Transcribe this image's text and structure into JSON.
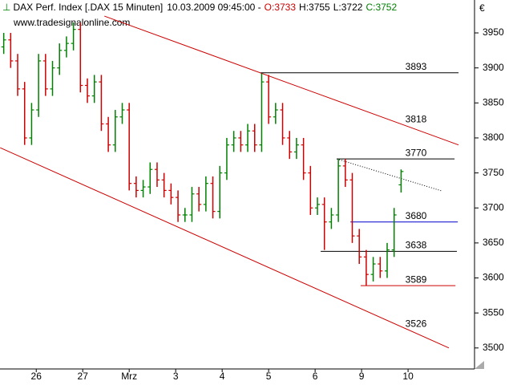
{
  "chart_data": {
    "type": "ohlc",
    "title": "DAX Perf. Index [.DAX  15 Minuten]",
    "timestamp": "10.03.2009 09:45:00 -",
    "quote": [
      {
        "text": "O:3733",
        "color": "#cc0000"
      },
      {
        "text": "H:3755",
        "color": "#000000"
      },
      {
        "text": "L:3722",
        "color": "#000000"
      },
      {
        "text": "C:3752",
        "color": "#008000"
      }
    ],
    "watermark": "www.tradesignalonline.com",
    "currency": "€",
    "up_color": "#008000",
    "down_color": "#cc0000",
    "xlim": [
      -0.28,
      9.93
    ],
    "xticks": [
      {
        "value": 0.5,
        "label": "26"
      },
      {
        "value": 1.5,
        "label": "27"
      },
      {
        "value": 2.5,
        "label": "Mrz"
      },
      {
        "value": 3.5,
        "label": "3"
      },
      {
        "value": 4.5,
        "label": "4"
      },
      {
        "value": 5.5,
        "label": "5"
      },
      {
        "value": 6.5,
        "label": "6"
      },
      {
        "value": 7.5,
        "label": "9"
      },
      {
        "value": 8.5,
        "label": "10"
      }
    ],
    "ylim": [
      3470,
      3997
    ],
    "yticks": [
      3500,
      3550,
      3600,
      3650,
      3700,
      3750,
      3800,
      3850,
      3900,
      3950
    ],
    "x": [
      -0.2,
      -0.05,
      0.1,
      0.25,
      0.4,
      0.55,
      0.7,
      0.85,
      1,
      1.15,
      1.3,
      1.45,
      1.6,
      1.75,
      1.9,
      2.05,
      2.2,
      2.35,
      2.5,
      2.65,
      2.8,
      2.95,
      3.1,
      3.25,
      3.4,
      3.55,
      3.7,
      3.85,
      4,
      4.15,
      4.3,
      4.45,
      4.6,
      4.75,
      4.9,
      5.05,
      5.2,
      5.35,
      5.5,
      5.65,
      5.8,
      5.95,
      6.1,
      6.25,
      6.4,
      6.55,
      6.7,
      6.85,
      7,
      7.15,
      7.3,
      7.45,
      7.6,
      7.75,
      7.9,
      8.05,
      8.2,
      8.35
    ],
    "open": [
      3930,
      3940,
      3910,
      3870,
      3800,
      3840,
      3910,
      3870,
      3900,
      3925,
      3935,
      3955,
      3875,
      3860,
      3880,
      3820,
      3790,
      3830,
      3840,
      3735,
      3725,
      3730,
      3755,
      3740,
      3725,
      3715,
      3690,
      3690,
      3720,
      3705,
      3735,
      3695,
      3750,
      3790,
      3800,
      3790,
      3810,
      3790,
      3880,
      3830,
      3840,
      3800,
      3780,
      3790,
      3750,
      3700,
      3705,
      3680,
      3690,
      3760,
      3740,
      3660,
      3630,
      3605,
      3620,
      3610,
      3640,
      3733
    ],
    "high": [
      3950,
      3950,
      3920,
      3880,
      3850,
      3920,
      3920,
      3910,
      3935,
      3945,
      3965,
      3965,
      3885,
      3890,
      3890,
      3830,
      3840,
      3850,
      3850,
      3745,
      3740,
      3765,
      3765,
      3750,
      3735,
      3725,
      3700,
      3730,
      3730,
      3745,
      3745,
      3760,
      3800,
      3810,
      3810,
      3820,
      3820,
      3892,
      3890,
      3850,
      3850,
      3810,
      3800,
      3800,
      3760,
      3715,
      3715,
      3700,
      3770,
      3770,
      3750,
      3670,
      3640,
      3630,
      3630,
      3650,
      3700,
      3755
    ],
    "low": [
      3920,
      3900,
      3860,
      3790,
      3790,
      3830,
      3860,
      3860,
      3890,
      3915,
      3925,
      3865,
      3850,
      3850,
      3810,
      3780,
      3780,
      3820,
      3725,
      3715,
      3715,
      3720,
      3730,
      3715,
      3705,
      3680,
      3680,
      3680,
      3695,
      3695,
      3685,
      3685,
      3740,
      3780,
      3780,
      3780,
      3780,
      3780,
      3820,
      3820,
      3790,
      3770,
      3770,
      3740,
      3690,
      3690,
      3640,
      3670,
      3680,
      3730,
      3650,
      3620,
      3589,
      3595,
      3600,
      3600,
      3630,
      3722
    ],
    "close": [
      3940,
      3910,
      3870,
      3800,
      3840,
      3910,
      3870,
      3900,
      3925,
      3935,
      3955,
      3875,
      3860,
      3880,
      3820,
      3790,
      3830,
      3840,
      3735,
      3725,
      3730,
      3755,
      3740,
      3725,
      3715,
      3690,
      3690,
      3720,
      3705,
      3735,
      3695,
      3750,
      3790,
      3800,
      3790,
      3810,
      3790,
      3880,
      3830,
      3840,
      3800,
      3780,
      3790,
      3750,
      3700,
      3705,
      3680,
      3690,
      3760,
      3740,
      3660,
      3630,
      3605,
      3620,
      3610,
      3640,
      3690,
      3752
    ],
    "levels": [
      {
        "value": 3893,
        "color": "#000000",
        "x": [
          5.33,
          9.586
        ]
      },
      {
        "value": 3770,
        "color": "#000000",
        "x": [
          6.966,
          9.5
        ]
      },
      {
        "value": 3680,
        "color": "#0000cc",
        "x": [
          7.26,
          9.57
        ]
      },
      {
        "value": 3638,
        "color": "#000000",
        "x": [
          6.62,
          9.55
        ]
      },
      {
        "value": 3589,
        "color": "#cc0000",
        "x": [
          7.48,
          9.52
        ]
      }
    ],
    "channel_labels": [
      3818,
      3526
    ],
    "channel_color": "#cc0000",
    "lines": [
      {
        "x": [
          1.966,
          9.586
        ],
        "y": [
          3974,
          3790
        ],
        "color": "#cc0000",
        "dotted": false
      },
      {
        "x": [
          -0.276,
          9.379
        ],
        "y": [
          3786,
          3500
        ],
        "color": "#cc0000",
        "dotted": false
      },
      {
        "x": [
          6.966,
          9.241
        ],
        "y": [
          3770,
          3724
        ],
        "color": "#000000",
        "dotted": true
      }
    ]
  }
}
